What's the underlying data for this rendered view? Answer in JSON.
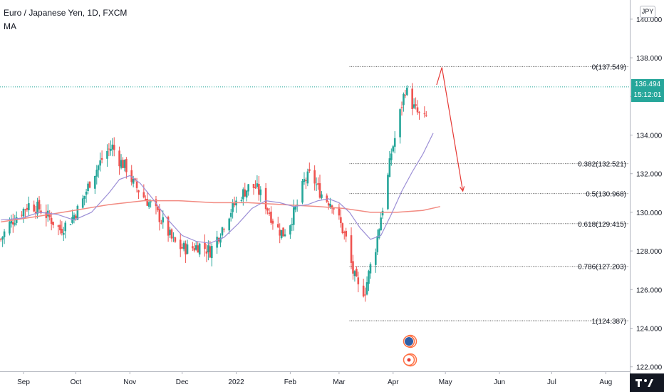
{
  "header": {
    "title": "Euro / Japanese Yen, 1D, FXCM",
    "indicator": "MA",
    "currency": "JPY"
  },
  "price_tag": {
    "value": "136.494",
    "countdown": "15:12:01"
  },
  "colors": {
    "up": "#26a69a",
    "down": "#ef5350",
    "ma_short": "#9c8fd6",
    "ma_long": "#f28b82",
    "arrow": "#e53935",
    "last_price_line": "#26a69a"
  },
  "chart_data": {
    "type": "candlestick",
    "symbol": "EURJPY",
    "ylim": [
      122.0,
      144.0
    ],
    "y_ticks": [
      "122.000",
      "124.000",
      "126.000",
      "128.000",
      "130.000",
      "132.000",
      "134.000",
      "136.000",
      "138.000",
      "140.000"
    ],
    "x_ticks": [
      {
        "label": "Sep",
        "day": 1
      },
      {
        "label": "Oct",
        "day": 31
      },
      {
        "label": "Nov",
        "day": 62
      },
      {
        "label": "Dec",
        "day": 92
      },
      {
        "label": "2022",
        "day": 123
      },
      {
        "label": "Feb",
        "day": 154
      },
      {
        "label": "Mar",
        "day": 182
      },
      {
        "label": "Apr",
        "day": 213
      },
      {
        "label": "May",
        "day": 243
      },
      {
        "label": "Jun",
        "day": 274
      },
      {
        "label": "Jul",
        "day": 304
      },
      {
        "label": "Aug",
        "day": 335
      }
    ],
    "last_price": 136.494,
    "close_path": [
      [
        -12,
        128.6
      ],
      [
        -8,
        129.3
      ],
      [
        -2,
        129.9
      ],
      [
        4,
        130.4
      ],
      [
        10,
        130.2
      ],
      [
        16,
        129.7
      ],
      [
        22,
        129.1
      ],
      [
        28,
        129.6
      ],
      [
        34,
        130.4
      ],
      [
        40,
        131.8
      ],
      [
        44,
        132.4
      ],
      [
        48,
        133.1
      ],
      [
        52,
        133.4
      ],
      [
        56,
        132.7
      ],
      [
        60,
        132.3
      ],
      [
        64,
        131.5
      ],
      [
        70,
        130.8
      ],
      [
        76,
        130.2
      ],
      [
        82,
        129.3
      ],
      [
        86,
        128.6
      ],
      [
        90,
        128.2
      ],
      [
        96,
        128.1
      ],
      [
        102,
        128.3
      ],
      [
        108,
        128.0
      ],
      [
        114,
        129.0
      ],
      [
        118,
        129.8
      ],
      [
        122,
        130.4
      ],
      [
        126,
        130.9
      ],
      [
        130,
        131.3
      ],
      [
        134,
        131.3
      ],
      [
        138,
        130.8
      ],
      [
        142,
        130.0
      ],
      [
        146,
        129.2
      ],
      [
        150,
        128.9
      ],
      [
        154,
        129.5
      ],
      [
        158,
        130.4
      ],
      [
        162,
        131.6
      ],
      [
        166,
        132.0
      ],
      [
        170,
        131.2
      ],
      [
        174,
        130.7
      ],
      [
        178,
        130.5
      ],
      [
        182,
        129.6
      ],
      [
        186,
        128.6
      ],
      [
        190,
        126.9
      ],
      [
        194,
        125.8
      ],
      [
        197,
        126.0
      ],
      [
        200,
        127.2
      ],
      [
        203,
        128.2
      ],
      [
        206,
        129.8
      ],
      [
        209,
        131.2
      ],
      [
        212,
        133.1
      ],
      [
        215,
        134.2
      ],
      [
        218,
        135.6
      ],
      [
        220,
        136.4
      ],
      [
        222,
        136.0
      ],
      [
        225,
        135.4
      ],
      [
        228,
        135.0
      ],
      [
        231,
        134.8
      ],
      [
        234,
        135.2
      ],
      [
        236,
        136.0
      ],
      [
        238,
        136.5
      ]
    ],
    "ma_short": [
      [
        -12,
        129.6
      ],
      [
        0,
        129.7
      ],
      [
        10,
        130.0
      ],
      [
        20,
        129.9
      ],
      [
        30,
        129.6
      ],
      [
        40,
        130.0
      ],
      [
        50,
        131.0
      ],
      [
        56,
        131.7
      ],
      [
        62,
        131.9
      ],
      [
        68,
        131.5
      ],
      [
        76,
        130.6
      ],
      [
        84,
        129.6
      ],
      [
        92,
        128.8
      ],
      [
        100,
        128.5
      ],
      [
        108,
        128.4
      ],
      [
        116,
        128.7
      ],
      [
        124,
        129.4
      ],
      [
        132,
        130.2
      ],
      [
        140,
        130.6
      ],
      [
        148,
        130.5
      ],
      [
        156,
        130.3
      ],
      [
        164,
        130.4
      ],
      [
        170,
        130.6
      ],
      [
        176,
        130.7
      ],
      [
        182,
        130.5
      ],
      [
        188,
        130.0
      ],
      [
        194,
        129.2
      ],
      [
        200,
        128.6
      ],
      [
        206,
        128.8
      ],
      [
        212,
        129.9
      ],
      [
        218,
        131.1
      ],
      [
        224,
        132.1
      ],
      [
        230,
        133.0
      ],
      [
        236,
        134.1
      ]
    ],
    "ma_long": [
      [
        -12,
        129.5
      ],
      [
        10,
        129.8
      ],
      [
        30,
        130.1
      ],
      [
        50,
        130.4
      ],
      [
        70,
        130.6
      ],
      [
        90,
        130.6
      ],
      [
        110,
        130.5
      ],
      [
        130,
        130.5
      ],
      [
        150,
        130.4
      ],
      [
        170,
        130.3
      ],
      [
        185,
        130.2
      ],
      [
        200,
        130.0
      ],
      [
        215,
        130.0
      ],
      [
        230,
        130.1
      ],
      [
        240,
        130.3
      ]
    ],
    "fibonacci": {
      "x_start": 188,
      "levels": [
        {
          "label": "0(137.549)",
          "price": 137.549
        },
        {
          "label": "0.382(132.521)",
          "price": 132.521
        },
        {
          "label": "0.5(130.968)",
          "price": 130.968
        },
        {
          "label": "0.618(129.415)",
          "price": 129.415
        },
        {
          "label": "0.786(127.203)",
          "price": 127.203
        },
        {
          "label": "1(124.387)",
          "price": 124.387
        }
      ]
    },
    "projection_arrow": [
      [
        238,
        136.6
      ],
      [
        241,
        137.5
      ],
      [
        253,
        131.1
      ]
    ]
  }
}
